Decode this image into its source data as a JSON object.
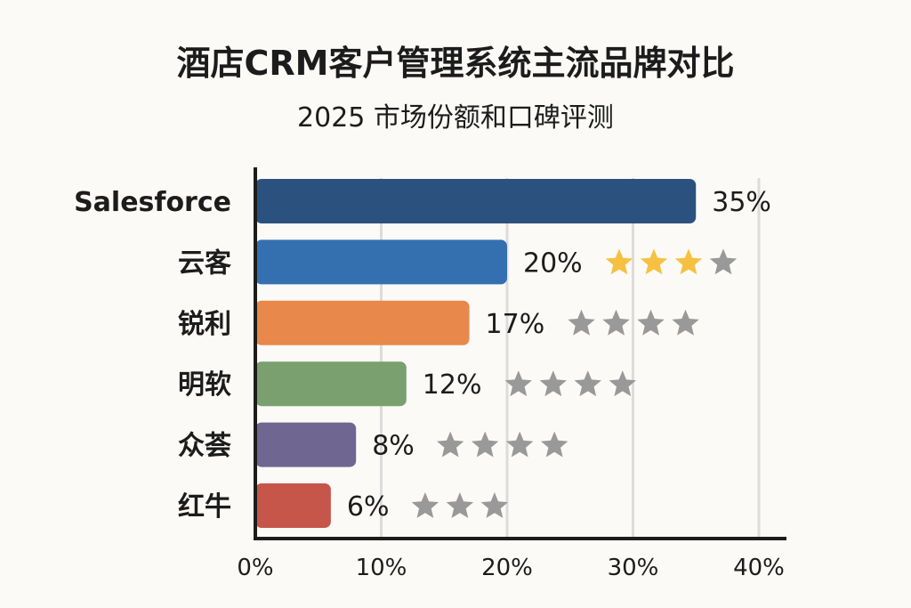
{
  "chart_data": {
    "type": "bar",
    "orientation": "horizontal",
    "title": "酒店CRM客户管理系统主流品牌对比",
    "subtitle": "2025 市场份额和口碑评测",
    "xlabel": "",
    "ylabel": "",
    "xlim": [
      0,
      40
    ],
    "x_ticks": [
      "0%",
      "10%",
      "20%",
      "30%",
      "40%"
    ],
    "grid": "vertical",
    "categories": [
      "Salesforce",
      "云客",
      "锐利",
      "明软",
      "众荟",
      "红牛"
    ],
    "values": [
      35,
      20,
      17,
      12,
      8,
      6
    ],
    "value_labels": [
      "35%",
      "20%",
      "17%",
      "12%",
      "8%",
      "6%"
    ],
    "bar_colors": [
      "#2b527e",
      "#3470b0",
      "#e8884a",
      "#79a06e",
      "#6f6692",
      "#c6564a"
    ],
    "ratings": [
      {
        "stars_total": 0,
        "stars_gold": 0
      },
      {
        "stars_total": 4,
        "stars_gold": 3
      },
      {
        "stars_total": 4,
        "stars_gold": 0
      },
      {
        "stars_total": 4,
        "stars_gold": 0
      },
      {
        "stars_total": 4,
        "stars_gold": 0
      },
      {
        "stars_total": 3,
        "stars_gold": 0
      }
    ],
    "star_colors": {
      "gold": "#f6c143",
      "gray": "#999999"
    }
  }
}
